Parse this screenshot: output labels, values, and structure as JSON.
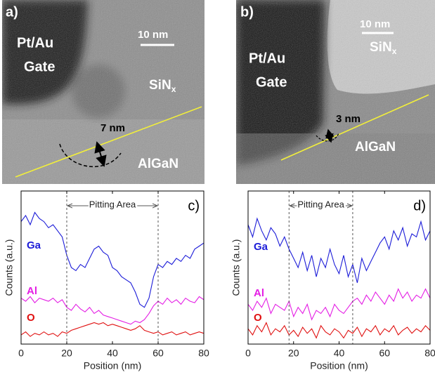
{
  "panels": [
    {
      "label": "a)",
      "gate": [
        "Pt/Au",
        "Gate"
      ],
      "scale_bar": "10 nm",
      "dielectric": {
        "text": "SiN",
        "subscript": "x"
      },
      "thickness": "7 nm",
      "barrier": "AlGaN"
    },
    {
      "label": "b)",
      "gate": [
        "Pt/Au",
        "Gate"
      ],
      "scale_bar": "10 nm",
      "dielectric": {
        "text": "SiN",
        "subscript": "x"
      },
      "thickness": "3 nm",
      "barrier": "AlGaN"
    }
  ],
  "chart_data": [
    {
      "type": "line",
      "panel_label": "c)",
      "xlabel": "Position (nm)",
      "ylabel": "Counts (a.u.)",
      "x": [
        0,
        2,
        4,
        6,
        8,
        10,
        12,
        14,
        16,
        18,
        20,
        22,
        24,
        26,
        28,
        30,
        32,
        34,
        36,
        38,
        40,
        42,
        44,
        46,
        48,
        50,
        52,
        54,
        56,
        58,
        60,
        62,
        64,
        66,
        68,
        70,
        72,
        74,
        76,
        78,
        80
      ],
      "xlim": [
        0,
        80
      ],
      "xticks": [
        0,
        20,
        40,
        60,
        80
      ],
      "ylim": [
        0,
        100
      ],
      "series": [
        {
          "name": "Ga",
          "color": "#1c1cd8",
          "values": [
            80,
            84,
            78,
            86,
            82,
            80,
            76,
            78,
            74,
            70,
            58,
            50,
            48,
            52,
            50,
            56,
            62,
            64,
            60,
            58,
            50,
            48,
            44,
            42,
            40,
            34,
            26,
            24,
            30,
            44,
            52,
            50,
            54,
            52,
            56,
            54,
            58,
            56,
            62,
            64,
            66
          ]
        },
        {
          "name": "Al",
          "color": "#e41ee4",
          "values": [
            30,
            28,
            31,
            27,
            30,
            29,
            28,
            30,
            27,
            29,
            24,
            22,
            26,
            23,
            21,
            24,
            20,
            22,
            19,
            18,
            17,
            16,
            15,
            14,
            13,
            15,
            14,
            16,
            20,
            25,
            28,
            26,
            30,
            27,
            29,
            26,
            30,
            28,
            27,
            31,
            29
          ]
        },
        {
          "name": "O",
          "color": "#e01010",
          "values": [
            6,
            8,
            5,
            7,
            6,
            8,
            6,
            7,
            5,
            8,
            7,
            9,
            10,
            11,
            12,
            13,
            14,
            13,
            14,
            12,
            13,
            12,
            11,
            10,
            9,
            10,
            12,
            9,
            8,
            7,
            8,
            6,
            7,
            8,
            6,
            7,
            8,
            6,
            7,
            8,
            7
          ]
        }
      ],
      "annotation": {
        "label": "Pitting Area",
        "x": [
          20,
          60
        ]
      }
    },
    {
      "type": "line",
      "panel_label": "d)",
      "xlabel": "Position (nm)",
      "ylabel": "Counts (a.u.)",
      "x": [
        0,
        2,
        4,
        6,
        8,
        10,
        12,
        14,
        16,
        18,
        20,
        22,
        24,
        26,
        28,
        30,
        32,
        34,
        36,
        38,
        40,
        42,
        44,
        46,
        48,
        50,
        52,
        54,
        56,
        58,
        60,
        62,
        64,
        66,
        68,
        70,
        72,
        74,
        76,
        78,
        80
      ],
      "xlim": [
        0,
        80
      ],
      "xticks": [
        0,
        20,
        40,
        60,
        80
      ],
      "ylim": [
        0,
        100
      ],
      "series": [
        {
          "name": "Ga",
          "color": "#1c1cd8",
          "values": [
            78,
            70,
            82,
            74,
            68,
            76,
            72,
            64,
            70,
            62,
            56,
            50,
            60,
            48,
            58,
            44,
            56,
            50,
            62,
            52,
            46,
            58,
            44,
            52,
            40,
            56,
            48,
            54,
            60,
            66,
            70,
            62,
            74,
            68,
            76,
            64,
            72,
            70,
            80,
            68,
            74
          ]
        },
        {
          "name": "Al",
          "color": "#e41ee4",
          "values": [
            26,
            22,
            28,
            24,
            30,
            20,
            26,
            24,
            22,
            28,
            18,
            24,
            20,
            26,
            16,
            22,
            20,
            24,
            18,
            26,
            22,
            20,
            24,
            28,
            30,
            26,
            32,
            28,
            34,
            30,
            26,
            32,
            28,
            36,
            30,
            34,
            28,
            32,
            30,
            36,
            30
          ]
        },
        {
          "name": "O",
          "color": "#e01010",
          "values": [
            10,
            6,
            12,
            8,
            14,
            6,
            10,
            8,
            12,
            6,
            9,
            5,
            11,
            7,
            10,
            4,
            12,
            8,
            6,
            10,
            8,
            4,
            9,
            7,
            11,
            5,
            10,
            8,
            12,
            6,
            10,
            8,
            12,
            6,
            9,
            11,
            7,
            10,
            8,
            12,
            9
          ]
        }
      ],
      "annotation": {
        "label": "Pitting Area",
        "x": [
          18,
          46
        ]
      }
    }
  ]
}
